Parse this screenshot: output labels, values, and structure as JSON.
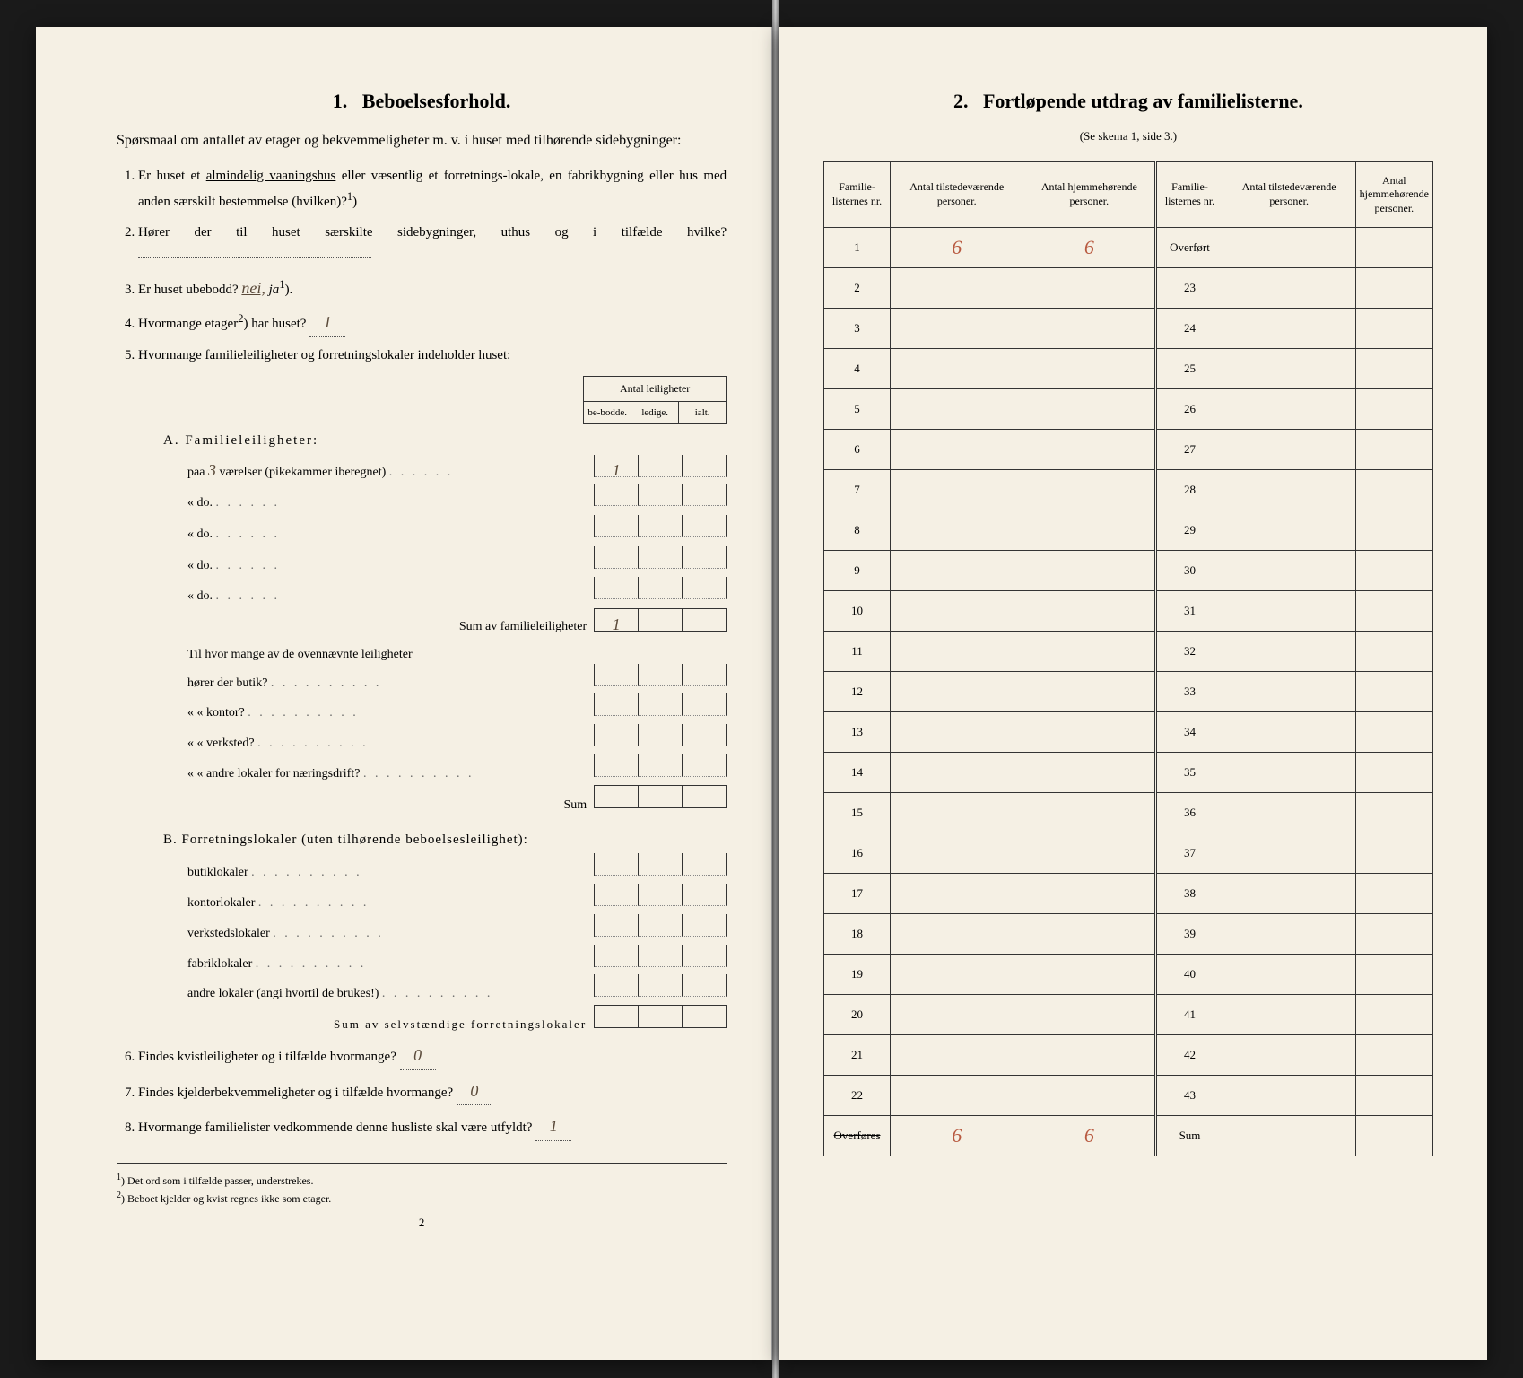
{
  "left": {
    "sectionNumber": "1.",
    "sectionTitle": "Beboelsesforhold.",
    "intro": "Spørsmaal om antallet av etager og bekvemmeligheter m. v. i huset med tilhørende sidebygninger:",
    "q1_pre": "Er huset et ",
    "q1_underlined": "almindelig vaaningshus",
    "q1_post": " eller væsentlig et forretnings-lokale, en fabrikbygning eller hus med anden særskilt bestemmelse (hvilken)?",
    "q1_sup": "1",
    "q2": "Hører der til huset særskilte sidebygninger, uthus og i tilfælde hvilke?",
    "q3_pre": "Er huset ubebodd? ",
    "q3_nei": "nei,",
    "q3_ja": " ja",
    "q3_sup": "1",
    "q4_pre": "Hvormange etager",
    "q4_sup": "2",
    "q4_post": ") har huset?",
    "q4_ans": "1",
    "q5": "Hvormange familieleiligheter og forretningslokaler indeholder huset:",
    "leilHeaderTop": "Antal leiligheter",
    "leilHeaderCols": [
      "be-bodde.",
      "ledige.",
      "ialt."
    ],
    "sectionA_label": "A. Familieleiligheter:",
    "a_rows": [
      {
        "pre": "paa",
        "hand": "3",
        "mid": "værelser (pikekammer iberegnet)",
        "vals": [
          "1",
          "",
          ""
        ]
      },
      {
        "pre": "«",
        "hand": "",
        "mid": "do.",
        "vals": [
          "",
          "",
          ""
        ]
      },
      {
        "pre": "«",
        "hand": "",
        "mid": "do.",
        "vals": [
          "",
          "",
          ""
        ]
      },
      {
        "pre": "«",
        "hand": "",
        "mid": "do.",
        "vals": [
          "",
          "",
          ""
        ]
      },
      {
        "pre": "«",
        "hand": "",
        "mid": "do.",
        "vals": [
          "",
          "",
          ""
        ]
      }
    ],
    "a_sum_label": "Sum av familieleiligheter",
    "a_sum_vals": [
      "1",
      "",
      ""
    ],
    "a_para": "Til hvor mange av de ovennævnte leiligheter",
    "a_sub": [
      {
        "pre": "hører der butik?",
        "vals": [
          "",
          "",
          ""
        ]
      },
      {
        "pre": "«   « kontor?",
        "vals": [
          "",
          "",
          ""
        ]
      },
      {
        "pre": "«   « verksted?",
        "vals": [
          "",
          "",
          ""
        ]
      },
      {
        "pre": "«   « andre lokaler for næringsdrift?",
        "vals": [
          "",
          "",
          ""
        ]
      }
    ],
    "a_sub_sum": "Sum",
    "sectionB_label": "B. Forretningslokaler (uten tilhørende beboelsesleilighet):",
    "b_rows": [
      {
        "label": "butiklokaler",
        "vals": [
          "",
          "",
          ""
        ]
      },
      {
        "label": "kontorlokaler",
        "vals": [
          "",
          "",
          ""
        ]
      },
      {
        "label": "verkstedslokaler",
        "vals": [
          "",
          "",
          ""
        ]
      },
      {
        "label": "fabriklokaler",
        "vals": [
          "",
          "",
          ""
        ]
      },
      {
        "label": "andre lokaler (angi hvortil de brukes!)",
        "vals": [
          "",
          "",
          ""
        ]
      }
    ],
    "b_sum_label": "Sum av selvstændige forretningslokaler",
    "q6_pre": "Findes kvistleiligheter og i tilfælde hvormange?",
    "q6_ans": "0",
    "q7_pre": "Findes kjelderbekvemmeligheter og i tilfælde hvormange?",
    "q7_ans": "0",
    "q8_pre": "Hvormange familielister vedkommende denne husliste skal være utfyldt?",
    "q8_ans": "1",
    "footnote1_sup": "1",
    "footnote1": "Det ord som i tilfælde passer, understrekes.",
    "footnote2_sup": "2",
    "footnote2": "Beboet kjelder og kvist regnes ikke som etager.",
    "pageNum": "2"
  },
  "right": {
    "sectionNumber": "2.",
    "sectionTitle": "Fortløpende utdrag av familielisterne.",
    "subtitle": "(Se skema 1, side 3.)",
    "headers": [
      "Familie-listernes nr.",
      "Antal tilstedeværende personer.",
      "Antal hjemmehørende personer.",
      "Familie-listernes nr.",
      "Antal tilstedeværende personer.",
      "Antal hjemmehørende personer."
    ],
    "overfort": "Overført",
    "overfores": "Overføres",
    "sum": "Sum",
    "leftRows": [
      {
        "nr": "1",
        "p1": "6",
        "p2": "6"
      },
      {
        "nr": "2",
        "p1": "",
        "p2": ""
      },
      {
        "nr": "3",
        "p1": "",
        "p2": ""
      },
      {
        "nr": "4",
        "p1": "",
        "p2": ""
      },
      {
        "nr": "5",
        "p1": "",
        "p2": ""
      },
      {
        "nr": "6",
        "p1": "",
        "p2": ""
      },
      {
        "nr": "7",
        "p1": "",
        "p2": ""
      },
      {
        "nr": "8",
        "p1": "",
        "p2": ""
      },
      {
        "nr": "9",
        "p1": "",
        "p2": ""
      },
      {
        "nr": "10",
        "p1": "",
        "p2": ""
      },
      {
        "nr": "11",
        "p1": "",
        "p2": ""
      },
      {
        "nr": "12",
        "p1": "",
        "p2": ""
      },
      {
        "nr": "13",
        "p1": "",
        "p2": ""
      },
      {
        "nr": "14",
        "p1": "",
        "p2": ""
      },
      {
        "nr": "15",
        "p1": "",
        "p2": ""
      },
      {
        "nr": "16",
        "p1": "",
        "p2": ""
      },
      {
        "nr": "17",
        "p1": "",
        "p2": ""
      },
      {
        "nr": "18",
        "p1": "",
        "p2": ""
      },
      {
        "nr": "19",
        "p1": "",
        "p2": ""
      },
      {
        "nr": "20",
        "p1": "",
        "p2": ""
      },
      {
        "nr": "21",
        "p1": "",
        "p2": ""
      },
      {
        "nr": "22",
        "p1": "",
        "p2": ""
      }
    ],
    "rightNrs": [
      "23",
      "24",
      "25",
      "26",
      "27",
      "28",
      "29",
      "30",
      "31",
      "32",
      "33",
      "34",
      "35",
      "36",
      "37",
      "38",
      "39",
      "40",
      "41",
      "42",
      "43"
    ],
    "overforesVals": [
      "6",
      "6"
    ],
    "sumVals": [
      "",
      ""
    ]
  },
  "colors": {
    "paper": "#f5f0e4",
    "ink": "#222222",
    "handwriting": "#5a4a3a",
    "handwritingRed": "#b85a40",
    "background": "#2a2a2a"
  }
}
